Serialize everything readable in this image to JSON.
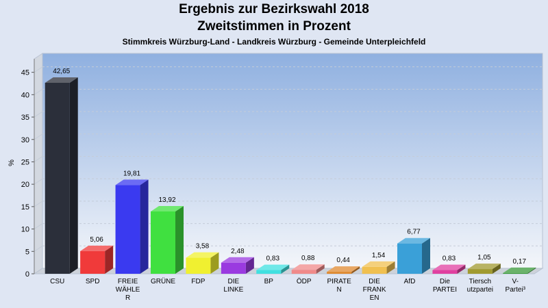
{
  "header": {
    "title_line1": "Ergebnis zur Bezirkswahl 2018",
    "title_line2": "Zweitstimmen in Prozent",
    "subtitle": "Stimmkreis Würzburg-Land - Landkreis Würzburg - Gemeinde Unterpleichfeld"
  },
  "chart_data": {
    "type": "bar",
    "title": "Ergebnis zur Bezirkswahl 2018 Zweitstimmen in Prozent",
    "subtitle": "Stimmkreis Würzburg-Land - Landkreis Würzburg - Gemeinde Unterpleichfeld",
    "ylabel": "%",
    "xlabel": "",
    "ylim": [
      0,
      48
    ],
    "yticks": [
      0,
      5,
      10,
      15,
      20,
      25,
      30,
      35,
      40,
      45
    ],
    "grid": true,
    "categories": [
      [
        "CSU"
      ],
      [
        "SPD"
      ],
      [
        "FREIE",
        "WÄHLE",
        "R"
      ],
      [
        "GRÜNE"
      ],
      [
        "FDP"
      ],
      [
        "DIE",
        "LINKE"
      ],
      [
        "BP"
      ],
      [
        "ÖDP"
      ],
      [
        "PIRATE",
        "N"
      ],
      [
        "DIE",
        "FRANK",
        "EN"
      ],
      [
        "AfD"
      ],
      [
        "Die",
        "PARTEI"
      ],
      [
        "Tiersch",
        "utzpartei"
      ],
      [
        "V-",
        "Partei³"
      ]
    ],
    "values": [
      42.65,
      5.06,
      19.81,
      13.92,
      3.58,
      2.48,
      0.83,
      0.88,
      0.44,
      1.54,
      6.77,
      0.83,
      1.05,
      0.17
    ],
    "value_labels": [
      "42,65",
      "5,06",
      "19,81",
      "13,92",
      "3,58",
      "2,48",
      "0,83",
      "0,88",
      "0,44",
      "1,54",
      "6,77",
      "0,83",
      "1,05",
      "0,17"
    ],
    "colors": [
      "#2b2f3a",
      "#f03a3a",
      "#3a3af0",
      "#40e040",
      "#f0f030",
      "#9a3ae0",
      "#40e0e0",
      "#f08a8a",
      "#e08a30",
      "#f0c050",
      "#3aa0d8",
      "#e040a0",
      "#a09a30",
      "#3a9a3a"
    ]
  }
}
